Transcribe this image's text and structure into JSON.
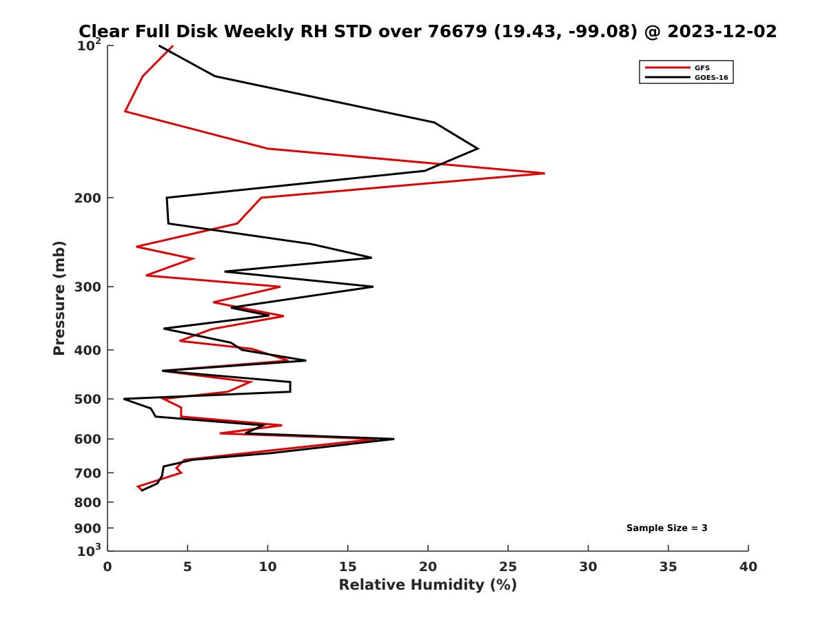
{
  "chart_data": {
    "type": "line",
    "title": "Clear Full Disk Weekly RH STD over 76679 (19.43, -99.08) @ 2023-12-02",
    "xlabel": "Relative Humidity (%)",
    "ylabel": "Pressure (mb)",
    "xlim": [
      0,
      40
    ],
    "ylim": [
      100,
      1000
    ],
    "y_scale": "log",
    "y_reversed": true,
    "grid": false,
    "legend_position": "top-right",
    "x_ticks": [
      "0",
      "5",
      "10",
      "15",
      "20",
      "25",
      "30",
      "35",
      "40"
    ],
    "y_ticks": [
      {
        "value": 100,
        "base": "10",
        "exp": "2"
      },
      {
        "value": 200,
        "label": "200"
      },
      {
        "value": 300,
        "label": "300"
      },
      {
        "value": 400,
        "label": "400"
      },
      {
        "value": 500,
        "label": "500"
      },
      {
        "value": 600,
        "label": "600"
      },
      {
        "value": 700,
        "label": "700"
      },
      {
        "value": 800,
        "label": "800"
      },
      {
        "value": 900,
        "label": "900"
      },
      {
        "value": 1000,
        "base": "10",
        "exp": "3"
      }
    ],
    "annotation": "Sample Size = 3",
    "series": [
      {
        "name": "GFS",
        "color": "#e00000",
        "points": [
          [
            4.1,
            100
          ],
          [
            2.2,
            115
          ],
          [
            1.1,
            135
          ],
          [
            10.0,
            160
          ],
          [
            27.3,
            179
          ],
          [
            9.6,
            200
          ],
          [
            8.1,
            225
          ],
          [
            1.8,
            250
          ],
          [
            5.3,
            264
          ],
          [
            2.4,
            285
          ],
          [
            10.8,
            300
          ],
          [
            6.6,
            322
          ],
          [
            11.0,
            343
          ],
          [
            6.5,
            364
          ],
          [
            4.5,
            384
          ],
          [
            9.0,
            398
          ],
          [
            11.3,
            420
          ],
          [
            3.4,
            440
          ],
          [
            8.9,
            463
          ],
          [
            7.5,
            484
          ],
          [
            3.5,
            500
          ],
          [
            4.6,
            520
          ],
          [
            4.6,
            542
          ],
          [
            10.9,
            564
          ],
          [
            7.0,
            585
          ],
          [
            16.8,
            600
          ],
          [
            4.8,
            660
          ],
          [
            4.3,
            685
          ],
          [
            4.6,
            700
          ],
          [
            1.9,
            745
          ],
          [
            2.2,
            760
          ]
        ]
      },
      {
        "name": "GOES-16",
        "color": "#000000",
        "points": [
          [
            3.2,
            100
          ],
          [
            6.7,
            115
          ],
          [
            20.4,
            142
          ],
          [
            23.1,
            160
          ],
          [
            19.8,
            177
          ],
          [
            3.7,
            200
          ],
          [
            3.8,
            225
          ],
          [
            12.7,
            247
          ],
          [
            16.5,
            263
          ],
          [
            7.3,
            280
          ],
          [
            16.6,
            300
          ],
          [
            7.7,
            330
          ],
          [
            10.1,
            342
          ],
          [
            3.5,
            363
          ],
          [
            7.7,
            387
          ],
          [
            8.4,
            400
          ],
          [
            12.4,
            420
          ],
          [
            3.4,
            440
          ],
          [
            11.4,
            463
          ],
          [
            11.4,
            484
          ],
          [
            1.0,
            500
          ],
          [
            2.7,
            522
          ],
          [
            3.0,
            542
          ],
          [
            9.7,
            564
          ],
          [
            8.6,
            585
          ],
          [
            17.9,
            600
          ],
          [
            10.2,
            640
          ],
          [
            5.3,
            660
          ],
          [
            3.5,
            680
          ],
          [
            3.4,
            710
          ],
          [
            3.1,
            735
          ],
          [
            2.1,
            760
          ]
        ]
      }
    ]
  }
}
